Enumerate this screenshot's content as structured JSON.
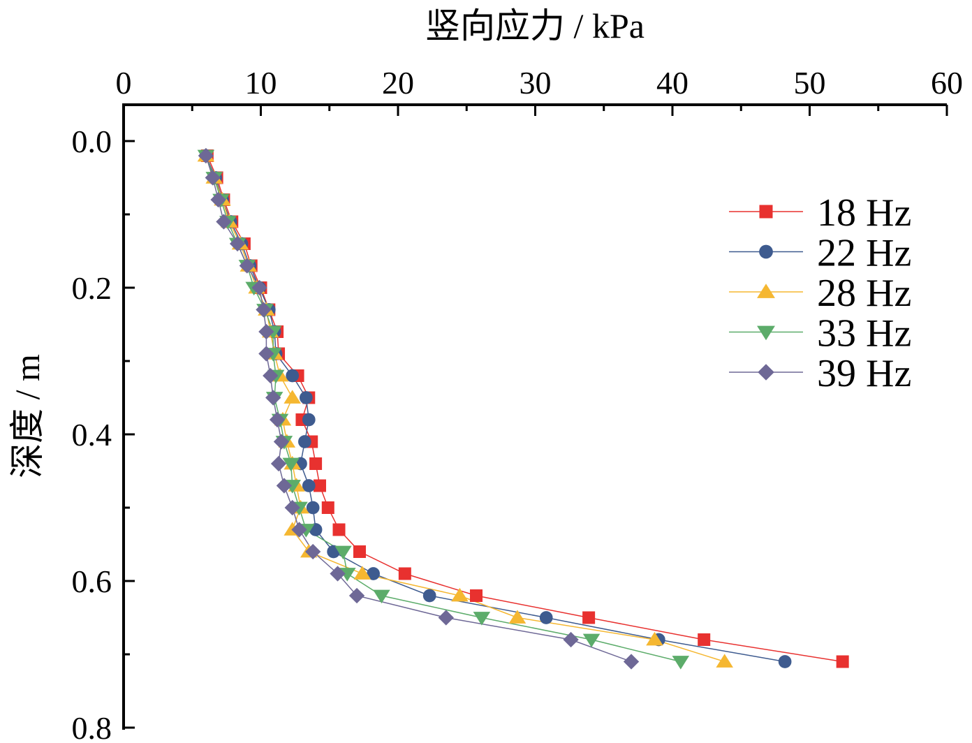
{
  "chart_data": {
    "type": "line",
    "title": "",
    "xlabel": "竖向应力 / kPa",
    "ylabel": "深度 / m",
    "x_axis_position": "top",
    "y_axis_inverted": true,
    "xlim": [
      0,
      60
    ],
    "ylim": [
      0,
      0.8
    ],
    "x_ticks": [
      "0",
      "10",
      "20",
      "30",
      "40",
      "50",
      "60"
    ],
    "y_ticks": [
      "0.0",
      "0.2",
      "0.4",
      "0.6",
      "0.8"
    ],
    "grid": false,
    "legend_position": "top-right",
    "depths": [
      0.02,
      0.05,
      0.08,
      0.11,
      0.14,
      0.17,
      0.2,
      0.23,
      0.26,
      0.29,
      0.32,
      0.35,
      0.38,
      0.41,
      0.44,
      0.47,
      0.5,
      0.53,
      0.56,
      0.59,
      0.62,
      0.65,
      0.68,
      0.71
    ],
    "series": [
      {
        "name": "18 Hz",
        "marker": "square",
        "color": "#e8312f",
        "stress": [
          6.1,
          6.8,
          7.3,
          7.9,
          8.8,
          9.3,
          10.0,
          10.6,
          11.2,
          11.3,
          12.7,
          13.5,
          13.0,
          13.7,
          14.0,
          14.3,
          14.9,
          15.7,
          17.2,
          20.5,
          25.7,
          33.9,
          42.3,
          52.4
        ]
      },
      {
        "name": "22 Hz",
        "marker": "circle",
        "color": "#3e5b8f",
        "stress": [
          6.0,
          6.7,
          7.2,
          7.8,
          8.6,
          9.2,
          9.9,
          10.6,
          11.0,
          11.1,
          12.3,
          13.3,
          13.5,
          13.2,
          12.9,
          13.5,
          13.8,
          14.0,
          15.3,
          18.2,
          22.3,
          30.8,
          39.0,
          48.2
        ]
      },
      {
        "name": "28 Hz",
        "marker": "triangle-up",
        "color": "#f5b731",
        "stress": [
          6.0,
          6.6,
          7.2,
          7.7,
          8.5,
          9.1,
          9.7,
          10.4,
          10.7,
          11.0,
          11.4,
          12.3,
          11.6,
          11.9,
          12.3,
          12.6,
          12.9,
          12.3,
          13.5,
          17.4,
          24.5,
          28.7,
          38.7,
          43.8
        ]
      },
      {
        "name": "33 Hz",
        "marker": "triangle-down",
        "color": "#5cac6a",
        "stress": [
          6.0,
          6.6,
          7.1,
          7.6,
          8.3,
          9.0,
          9.5,
          10.3,
          10.9,
          10.9,
          11.1,
          11.0,
          11.4,
          11.7,
          12.2,
          12.3,
          12.8,
          13.3,
          16.0,
          16.3,
          18.8,
          26.1,
          34.1,
          40.6
        ]
      },
      {
        "name": "39 Hz",
        "marker": "diamond",
        "color": "#6e6896",
        "stress": [
          6.0,
          6.5,
          6.9,
          7.3,
          8.3,
          9.0,
          9.9,
          10.2,
          10.4,
          10.4,
          10.7,
          10.9,
          11.2,
          11.5,
          11.3,
          11.7,
          12.3,
          12.8,
          13.8,
          15.6,
          17.0,
          23.5,
          32.6,
          37.0
        ]
      }
    ]
  }
}
